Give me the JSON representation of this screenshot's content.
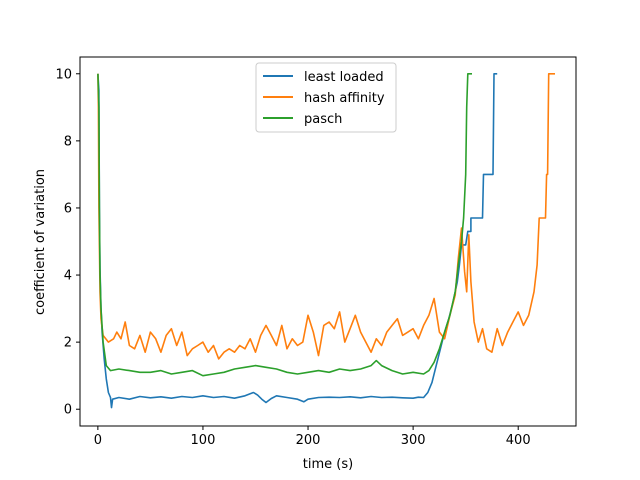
{
  "chart_data": {
    "type": "line",
    "xlabel": "time (s)",
    "ylabel": "coefficient of variation",
    "xlim": [
      -17,
      455
    ],
    "ylim": [
      -0.5,
      10.5
    ],
    "xticks": [
      0,
      100,
      200,
      300,
      400
    ],
    "yticks": [
      0,
      2,
      4,
      6,
      8,
      10
    ],
    "grid": false,
    "legend": "upper-center",
    "series": [
      {
        "name": "least loaded",
        "color": "#1f77b4",
        "points": [
          [
            0,
            10
          ],
          [
            1,
            9.5
          ],
          [
            1.5,
            6.0
          ],
          [
            2,
            4.2
          ],
          [
            3,
            3.0
          ],
          [
            4,
            2.3
          ],
          [
            6,
            1.5
          ],
          [
            8,
            0.9
          ],
          [
            10,
            0.5
          ],
          [
            12,
            0.35
          ],
          [
            13,
            0.05
          ],
          [
            14,
            0.3
          ],
          [
            20,
            0.35
          ],
          [
            30,
            0.3
          ],
          [
            40,
            0.38
          ],
          [
            50,
            0.34
          ],
          [
            60,
            0.37
          ],
          [
            70,
            0.33
          ],
          [
            80,
            0.38
          ],
          [
            90,
            0.35
          ],
          [
            100,
            0.4
          ],
          [
            110,
            0.35
          ],
          [
            120,
            0.38
          ],
          [
            130,
            0.33
          ],
          [
            140,
            0.4
          ],
          [
            148,
            0.5
          ],
          [
            152,
            0.42
          ],
          [
            156,
            0.3
          ],
          [
            160,
            0.2
          ],
          [
            165,
            0.32
          ],
          [
            170,
            0.4
          ],
          [
            180,
            0.35
          ],
          [
            190,
            0.3
          ],
          [
            196,
            0.22
          ],
          [
            200,
            0.3
          ],
          [
            210,
            0.35
          ],
          [
            220,
            0.36
          ],
          [
            230,
            0.35
          ],
          [
            240,
            0.37
          ],
          [
            250,
            0.34
          ],
          [
            260,
            0.38
          ],
          [
            270,
            0.35
          ],
          [
            280,
            0.36
          ],
          [
            290,
            0.34
          ],
          [
            300,
            0.33
          ],
          [
            305,
            0.36
          ],
          [
            310,
            0.35
          ],
          [
            314,
            0.5
          ],
          [
            318,
            0.8
          ],
          [
            322,
            1.3
          ],
          [
            326,
            1.8
          ],
          [
            330,
            2.3
          ],
          [
            334,
            2.7
          ],
          [
            338,
            3.2
          ],
          [
            342,
            3.8
          ],
          [
            344,
            4.3
          ],
          [
            346,
            4.9
          ],
          [
            350,
            4.9
          ],
          [
            352,
            5.3
          ],
          [
            355,
            5.3
          ],
          [
            355,
            5.7
          ],
          [
            366,
            5.7
          ],
          [
            367,
            7.0
          ],
          [
            376,
            7.0
          ],
          [
            377,
            10
          ],
          [
            380,
            10
          ]
        ]
      },
      {
        "name": "hash affinity",
        "color": "#ff7f0e",
        "points": [
          [
            0,
            10
          ],
          [
            0.5,
            9.0
          ],
          [
            1,
            6.0
          ],
          [
            1.5,
            4.9
          ],
          [
            2,
            3.5
          ],
          [
            3,
            2.7
          ],
          [
            5,
            2.2
          ],
          [
            10,
            2.0
          ],
          [
            15,
            2.1
          ],
          [
            18,
            2.3
          ],
          [
            22,
            2.1
          ],
          [
            26,
            2.6
          ],
          [
            30,
            1.9
          ],
          [
            35,
            1.8
          ],
          [
            40,
            2.2
          ],
          [
            45,
            1.7
          ],
          [
            50,
            2.3
          ],
          [
            55,
            2.1
          ],
          [
            60,
            1.7
          ],
          [
            65,
            2.2
          ],
          [
            70,
            2.4
          ],
          [
            75,
            1.9
          ],
          [
            80,
            2.3
          ],
          [
            85,
            1.6
          ],
          [
            90,
            1.8
          ],
          [
            95,
            1.9
          ],
          [
            100,
            2.0
          ],
          [
            105,
            1.7
          ],
          [
            110,
            1.9
          ],
          [
            115,
            1.5
          ],
          [
            120,
            1.7
          ],
          [
            125,
            1.8
          ],
          [
            130,
            1.7
          ],
          [
            135,
            1.9
          ],
          [
            140,
            1.8
          ],
          [
            145,
            2.1
          ],
          [
            150,
            1.7
          ],
          [
            155,
            2.2
          ],
          [
            160,
            2.5
          ],
          [
            165,
            2.2
          ],
          [
            170,
            1.9
          ],
          [
            175,
            2.5
          ],
          [
            180,
            1.8
          ],
          [
            185,
            2.1
          ],
          [
            190,
            1.9
          ],
          [
            195,
            2.0
          ],
          [
            200,
            2.8
          ],
          [
            205,
            2.3
          ],
          [
            210,
            1.6
          ],
          [
            215,
            2.5
          ],
          [
            220,
            2.6
          ],
          [
            225,
            2.4
          ],
          [
            230,
            2.9
          ],
          [
            235,
            2.0
          ],
          [
            240,
            2.4
          ],
          [
            245,
            2.8
          ],
          [
            250,
            2.3
          ],
          [
            255,
            2.0
          ],
          [
            260,
            1.7
          ],
          [
            265,
            2.1
          ],
          [
            270,
            1.9
          ],
          [
            275,
            2.3
          ],
          [
            280,
            2.5
          ],
          [
            285,
            2.7
          ],
          [
            290,
            2.2
          ],
          [
            295,
            2.3
          ],
          [
            300,
            2.4
          ],
          [
            305,
            2.1
          ],
          [
            310,
            2.5
          ],
          [
            315,
            2.8
          ],
          [
            320,
            3.3
          ],
          [
            325,
            2.3
          ],
          [
            330,
            2.1
          ],
          [
            335,
            2.8
          ],
          [
            340,
            3.4
          ],
          [
            343,
            4.5
          ],
          [
            346,
            5.4
          ],
          [
            349,
            4.1
          ],
          [
            351,
            3.5
          ],
          [
            353,
            5.2
          ],
          [
            355,
            3.8
          ],
          [
            358,
            2.6
          ],
          [
            362,
            2.0
          ],
          [
            366,
            2.4
          ],
          [
            370,
            1.8
          ],
          [
            375,
            1.7
          ],
          [
            380,
            2.4
          ],
          [
            385,
            1.9
          ],
          [
            390,
            2.3
          ],
          [
            395,
            2.6
          ],
          [
            400,
            2.9
          ],
          [
            405,
            2.5
          ],
          [
            410,
            2.8
          ],
          [
            415,
            3.5
          ],
          [
            418,
            4.3
          ],
          [
            420,
            5.7
          ],
          [
            426,
            5.7
          ],
          [
            427,
            7.0
          ],
          [
            428,
            7.0
          ],
          [
            429,
            10
          ],
          [
            435,
            10
          ]
        ]
      },
      {
        "name": "pasch",
        "color": "#2ca02c",
        "points": [
          [
            0,
            10
          ],
          [
            1,
            9.0
          ],
          [
            1.5,
            6.0
          ],
          [
            2,
            4.0
          ],
          [
            3,
            3.0
          ],
          [
            5,
            2.0
          ],
          [
            8,
            1.3
          ],
          [
            12,
            1.15
          ],
          [
            20,
            1.2
          ],
          [
            30,
            1.15
          ],
          [
            40,
            1.1
          ],
          [
            50,
            1.1
          ],
          [
            60,
            1.15
          ],
          [
            70,
            1.05
          ],
          [
            80,
            1.1
          ],
          [
            90,
            1.15
          ],
          [
            100,
            1.0
          ],
          [
            110,
            1.05
          ],
          [
            120,
            1.1
          ],
          [
            130,
            1.2
          ],
          [
            140,
            1.25
          ],
          [
            150,
            1.3
          ],
          [
            160,
            1.25
          ],
          [
            170,
            1.2
          ],
          [
            180,
            1.1
          ],
          [
            190,
            1.05
          ],
          [
            200,
            1.1
          ],
          [
            210,
            1.15
          ],
          [
            220,
            1.1
          ],
          [
            230,
            1.2
          ],
          [
            240,
            1.15
          ],
          [
            250,
            1.2
          ],
          [
            260,
            1.3
          ],
          [
            265,
            1.45
          ],
          [
            270,
            1.3
          ],
          [
            280,
            1.15
          ],
          [
            290,
            1.05
          ],
          [
            300,
            1.1
          ],
          [
            310,
            1.05
          ],
          [
            315,
            1.15
          ],
          [
            320,
            1.4
          ],
          [
            325,
            1.8
          ],
          [
            330,
            2.3
          ],
          [
            335,
            2.8
          ],
          [
            340,
            3.5
          ],
          [
            343,
            4.3
          ],
          [
            346,
            5.0
          ],
          [
            348,
            5.7
          ],
          [
            350,
            7.0
          ],
          [
            351,
            9.0
          ],
          [
            352,
            10
          ],
          [
            356,
            10
          ]
        ]
      }
    ]
  }
}
